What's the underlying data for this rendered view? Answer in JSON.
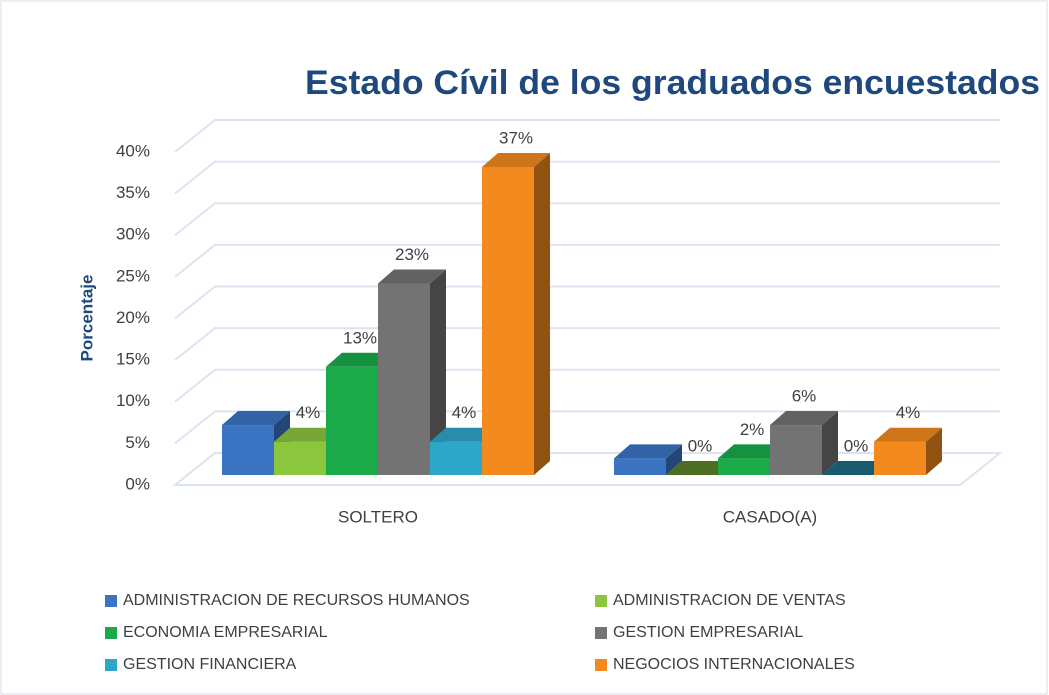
{
  "chart_data": {
    "type": "bar3d",
    "title": "Estado Cívil de los graduados encuestados",
    "y_label": "Porcentaje",
    "categories": [
      "SOLTERO",
      "CASADO(A)"
    ],
    "series": [
      {
        "name": "ADMINISTRACION DE RECURSOS HUMANOS",
        "color": "#3c74c4",
        "values": [
          6,
          2
        ]
      },
      {
        "name": "ADMINISTRACION DE VENTAS",
        "color": "#8cc63f",
        "values": [
          4,
          0
        ],
        "value_labels": [
          "4%",
          "0%"
        ]
      },
      {
        "name": "ECONOMIA EMPRESARIAL",
        "color": "#1aaa4a",
        "values": [
          13,
          2
        ],
        "value_labels": [
          "13%",
          "2%"
        ]
      },
      {
        "name": "GESTION EMPRESARIAL",
        "color": "#737373",
        "values": [
          23,
          6
        ],
        "value_labels": [
          "23%",
          "6%"
        ]
      },
      {
        "name": "GESTION FINANCIERA",
        "color": "#2ea6c8",
        "values": [
          4,
          0
        ],
        "value_labels": [
          "4%",
          "0%"
        ]
      },
      {
        "name": "NEGOCIOS INTERNACIONALES",
        "color": "#f28a1e",
        "values": [
          37,
          4
        ],
        "value_labels": [
          "37%",
          "4%"
        ]
      }
    ],
    "ylim": [
      0,
      40
    ],
    "yticks": [
      {
        "value": 0,
        "label": "0%"
      },
      {
        "value": 5,
        "label": "5%"
      },
      {
        "value": 10,
        "label": "10%"
      },
      {
        "value": 15,
        "label": "15%"
      },
      {
        "value": 20,
        "label": "20%"
      },
      {
        "value": 25,
        "label": "25%"
      },
      {
        "value": 30,
        "label": "30%"
      },
      {
        "value": 35,
        "label": "35%"
      },
      {
        "value": 40,
        "label": "40%"
      }
    ],
    "grid": true
  }
}
